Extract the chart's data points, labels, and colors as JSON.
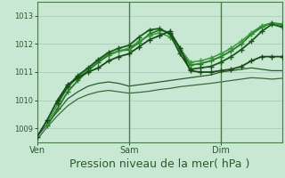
{
  "xlabel": "Pression niveau de la mer( hPa )",
  "xlabel_fontsize": 9,
  "bg_color": "#c8e8d4",
  "plot_bg_color": "#c8e8d4",
  "grid_color": "#a8c8b4",
  "vline_color": "#4a7a4a",
  "tick_label_color": "#2a5a2a",
  "ylim": [
    1008.5,
    1013.5
  ],
  "yticks": [
    1009,
    1010,
    1011,
    1012,
    1013
  ],
  "xlim": [
    0,
    96
  ],
  "ven_x": 0,
  "sam_x": 36,
  "dim_x": 72,
  "vlines_x": [
    36,
    72
  ],
  "series": [
    {
      "x": [
        0,
        4,
        8,
        12,
        16,
        20,
        24,
        28,
        32,
        36,
        40,
        44,
        48,
        52,
        56,
        60,
        64,
        68,
        72,
        76,
        80,
        84,
        88,
        92,
        96
      ],
      "y": [
        1008.6,
        1009.05,
        1009.45,
        1009.8,
        1010.05,
        1010.2,
        1010.3,
        1010.35,
        1010.3,
        1010.25,
        1010.28,
        1010.32,
        1010.38,
        1010.42,
        1010.48,
        1010.52,
        1010.56,
        1010.6,
        1010.65,
        1010.7,
        1010.75,
        1010.8,
        1010.78,
        1010.75,
        1010.78
      ],
      "color": "#3a6a3a",
      "lw": 0.9,
      "marker": null,
      "ms": 0,
      "zorder": 2
    },
    {
      "x": [
        0,
        4,
        8,
        12,
        16,
        20,
        24,
        28,
        32,
        36,
        40,
        44,
        48,
        52,
        56,
        60,
        64,
        68,
        72,
        76,
        80,
        84,
        88,
        92,
        96
      ],
      "y": [
        1008.7,
        1009.15,
        1009.6,
        1010.05,
        1010.3,
        1010.5,
        1010.6,
        1010.65,
        1010.6,
        1010.5,
        1010.55,
        1010.6,
        1010.65,
        1010.7,
        1010.75,
        1010.8,
        1010.85,
        1010.9,
        1011.0,
        1011.05,
        1011.1,
        1011.15,
        1011.1,
        1011.05,
        1011.05
      ],
      "color": "#2a5a2a",
      "lw": 0.9,
      "marker": null,
      "ms": 0,
      "zorder": 2
    },
    {
      "x": [
        0,
        4,
        8,
        12,
        16,
        20,
        24,
        28,
        32,
        36,
        40,
        44,
        48,
        52,
        56,
        60,
        64,
        68,
        72,
        76,
        80,
        84,
        88,
        92,
        96
      ],
      "y": [
        1008.7,
        1009.3,
        1010.0,
        1010.55,
        1010.8,
        1011.0,
        1011.15,
        1011.4,
        1011.55,
        1011.65,
        1011.9,
        1012.15,
        1012.3,
        1012.45,
        1011.85,
        1011.05,
        1011.0,
        1011.0,
        1011.05,
        1011.1,
        1011.2,
        1011.4,
        1011.55,
        1011.55,
        1011.55
      ],
      "color": "#1a4a1a",
      "lw": 1.3,
      "marker": "+",
      "ms": 4,
      "zorder": 5
    },
    {
      "x": [
        4,
        8,
        12,
        16,
        20,
        24,
        28,
        32,
        36,
        40,
        44,
        48,
        52,
        56,
        60,
        64,
        68,
        72,
        76,
        80,
        84,
        88,
        92,
        96
      ],
      "y": [
        1009.1,
        1009.7,
        1010.3,
        1010.7,
        1011.05,
        1011.35,
        1011.6,
        1011.75,
        1011.8,
        1012.05,
        1012.35,
        1012.5,
        1012.4,
        1011.8,
        1011.25,
        1011.3,
        1011.4,
        1011.55,
        1011.75,
        1012.0,
        1012.35,
        1012.6,
        1012.75,
        1012.7
      ],
      "color": "#2a7a2a",
      "lw": 1.3,
      "marker": "+",
      "ms": 4,
      "zorder": 4
    },
    {
      "x": [
        4,
        8,
        12,
        16,
        20,
        24,
        28,
        32,
        36,
        40,
        44,
        48,
        52,
        56,
        60,
        64,
        68,
        72,
        76,
        80,
        84,
        88,
        92,
        96
      ],
      "y": [
        1009.2,
        1009.85,
        1010.45,
        1010.82,
        1011.1,
        1011.42,
        1011.65,
        1011.75,
        1011.85,
        1012.1,
        1012.3,
        1012.4,
        1012.25,
        1011.85,
        1011.35,
        1011.4,
        1011.5,
        1011.65,
        1011.85,
        1012.1,
        1012.4,
        1012.65,
        1012.75,
        1012.65
      ],
      "color": "#3a9a3a",
      "lw": 1.1,
      "marker": "+",
      "ms": 4,
      "zorder": 4
    },
    {
      "x": [
        8,
        12,
        16,
        20,
        24,
        28,
        32,
        36,
        40,
        44,
        48,
        52,
        56,
        60,
        64,
        68,
        72,
        76,
        80,
        84,
        88,
        92,
        96
      ],
      "y": [
        1009.9,
        1010.5,
        1010.88,
        1011.15,
        1011.45,
        1011.7,
        1011.85,
        1011.95,
        1012.25,
        1012.5,
        1012.55,
        1012.35,
        1011.65,
        1011.1,
        1011.15,
        1011.2,
        1011.35,
        1011.55,
        1011.8,
        1012.1,
        1012.45,
        1012.7,
        1012.6
      ],
      "color": "#1a5a1a",
      "lw": 1.3,
      "marker": "+",
      "ms": 4,
      "zorder": 4
    }
  ],
  "day_labels": [
    {
      "x": 0,
      "label": "Ven"
    },
    {
      "x": 36,
      "label": "Sam"
    },
    {
      "x": 72,
      "label": "Dim"
    }
  ]
}
